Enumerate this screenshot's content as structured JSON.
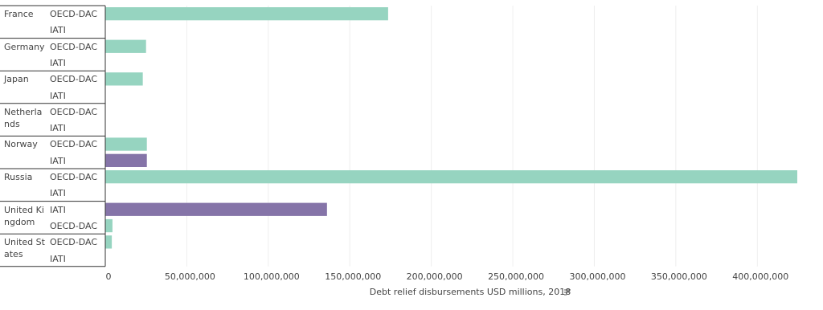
{
  "chart_data": {
    "type": "bar",
    "orientation": "horizontal",
    "x_label": "Debt relief disbursements USD millions, 2018",
    "xlim": [
      0,
      425000000
    ],
    "xticks": [
      0,
      {
        "value": 50000000,
        "label": "50,000,000"
      },
      {
        "value": 100000000,
        "label": "100,000,000"
      },
      {
        "value": 150000000,
        "label": "150,000,000"
      },
      {
        "value": 200000000,
        "label": "200,000,000"
      },
      {
        "value": 250000000,
        "label": "250,000,000"
      },
      {
        "value": 300000000,
        "label": "300,000,000"
      },
      {
        "value": 350000000,
        "label": "350,000,000"
      },
      {
        "value": 400000000,
        "label": "400,000,000"
      }
    ],
    "grid": true,
    "groups": [
      {
        "name": "France",
        "rows": [
          {
            "label": "OECD-DAC",
            "value": 173500000,
            "color": "#96d4c0"
          },
          {
            "label": "IATI",
            "value": null,
            "color": "#8574a8"
          }
        ]
      },
      {
        "name": "Germany",
        "rows": [
          {
            "label": "OECD-DAC",
            "value": 25000000,
            "color": "#96d4c0"
          },
          {
            "label": "IATI",
            "value": null,
            "color": "#8574a8"
          }
        ]
      },
      {
        "name": "Japan",
        "rows": [
          {
            "label": "OECD-DAC",
            "value": 23000000,
            "color": "#96d4c0"
          },
          {
            "label": "IATI",
            "value": null,
            "color": "#8574a8"
          }
        ]
      },
      {
        "name": "Netherlands",
        "rows": [
          {
            "label": "OECD-DAC",
            "value": null,
            "color": "#96d4c0"
          },
          {
            "label": "IATI",
            "value": null,
            "color": "#8574a8"
          }
        ]
      },
      {
        "name": "Norway",
        "rows": [
          {
            "label": "OECD-DAC",
            "value": 25500000,
            "color": "#96d4c0"
          },
          {
            "label": "IATI",
            "value": 25500000,
            "color": "#8574a8"
          }
        ]
      },
      {
        "name": "Russia",
        "rows": [
          {
            "label": "OECD-DAC",
            "value": 424500000,
            "color": "#96d4c0"
          },
          {
            "label": "IATI",
            "value": null,
            "color": "#8574a8"
          }
        ]
      },
      {
        "name": "United Kingdom",
        "rows": [
          {
            "label": "IATI",
            "value": 136000000,
            "color": "#8574a8"
          },
          {
            "label": "OECD-DAC",
            "value": 4400000,
            "color": "#96d4c0"
          }
        ]
      },
      {
        "name": "United States",
        "rows": [
          {
            "label": "OECD-DAC",
            "value": 4000000,
            "color": "#96d4c0"
          },
          {
            "label": "IATI",
            "value": null,
            "color": "#8574a8"
          }
        ]
      }
    ]
  }
}
